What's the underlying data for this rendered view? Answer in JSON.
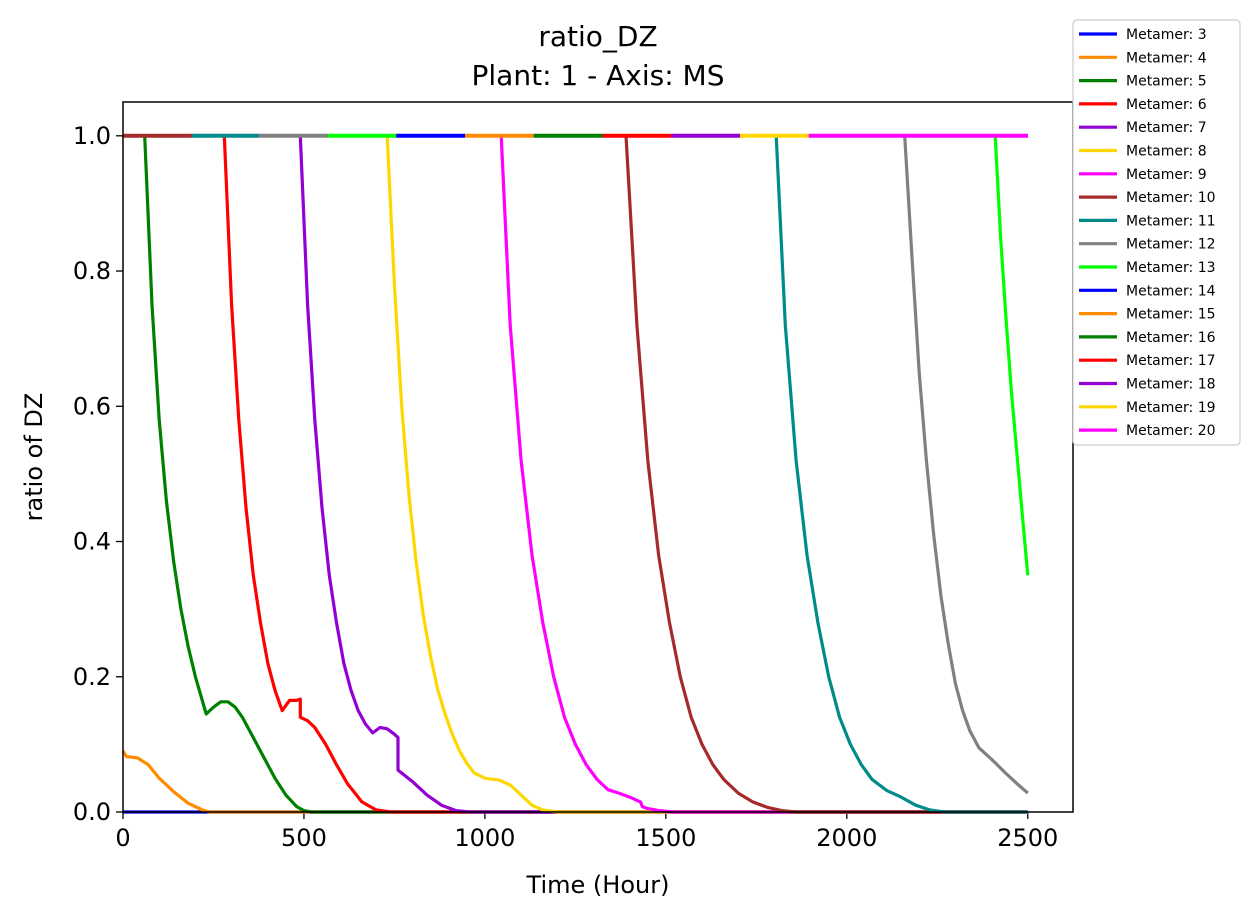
{
  "chart_data": {
    "type": "line",
    "title": "ratio_DZ",
    "subtitle": "Plant: 1 - Axis: MS",
    "xlabel": "Time (Hour)",
    "ylabel": "ratio of DZ",
    "xlim": [
      0,
      2625
    ],
    "ylim": [
      0,
      1.05
    ],
    "xticks": [
      "0",
      "500",
      "1000",
      "1500",
      "2000",
      "2500"
    ],
    "yticks": [
      "0.0",
      "0.2",
      "0.4",
      "0.6",
      "0.8",
      "1.0"
    ],
    "grid": false,
    "legend_position": "outside-top-right",
    "series": [
      {
        "name": "Metamer: 3",
        "color": "#0000ff",
        "x": [
          0,
          2500
        ],
        "y": [
          0.0,
          0.0
        ]
      },
      {
        "name": "Metamer: 4",
        "color": "#ff8c00",
        "x": [
          0,
          10,
          40,
          70,
          100,
          140,
          180,
          220,
          240,
          2500
        ],
        "y": [
          0.09,
          0.082,
          0.08,
          0.07,
          0.05,
          0.03,
          0.013,
          0.003,
          0.0,
          0.0
        ]
      },
      {
        "name": "Metamer: 5",
        "color": "#008000",
        "x": [
          0,
          60,
          80,
          100,
          120,
          140,
          160,
          180,
          200,
          230,
          250,
          270,
          290,
          310,
          330,
          360,
          390,
          420,
          450,
          480,
          500,
          520,
          2500
        ],
        "y": [
          1.0,
          1.0,
          0.75,
          0.58,
          0.46,
          0.37,
          0.3,
          0.245,
          0.2,
          0.145,
          0.155,
          0.163,
          0.163,
          0.155,
          0.14,
          0.11,
          0.08,
          0.05,
          0.025,
          0.008,
          0.002,
          0.0,
          0.0
        ]
      },
      {
        "name": "Metamer: 6",
        "color": "#ff0000",
        "x": [
          0,
          280,
          300,
          320,
          340,
          360,
          380,
          400,
          420,
          440,
          460,
          480,
          490,
          490,
          510,
          530,
          560,
          590,
          620,
          660,
          700,
          740,
          2500
        ],
        "y": [
          1.0,
          1.0,
          0.75,
          0.58,
          0.45,
          0.35,
          0.28,
          0.22,
          0.18,
          0.15,
          0.165,
          0.165,
          0.167,
          0.14,
          0.135,
          0.125,
          0.1,
          0.07,
          0.042,
          0.015,
          0.003,
          0.0,
          0.0
        ]
      },
      {
        "name": "Metamer: 7",
        "color": "#9400d3",
        "x": [
          0,
          490,
          510,
          530,
          550,
          570,
          590,
          610,
          630,
          650,
          670,
          690,
          710,
          730,
          750,
          760,
          760,
          800,
          840,
          880,
          920,
          960,
          2500
        ],
        "y": [
          1.0,
          1.0,
          0.75,
          0.58,
          0.45,
          0.35,
          0.28,
          0.22,
          0.18,
          0.15,
          0.13,
          0.117,
          0.125,
          0.123,
          0.115,
          0.11,
          0.062,
          0.045,
          0.025,
          0.01,
          0.002,
          0.0,
          0.0
        ]
      },
      {
        "name": "Metamer: 8",
        "color": "#ffd700",
        "x": [
          0,
          730,
          750,
          770,
          790,
          810,
          830,
          850,
          870,
          890,
          910,
          930,
          950,
          970,
          1000,
          1040,
          1070,
          1100,
          1130,
          1160,
          1200,
          2500
        ],
        "y": [
          1.0,
          1.0,
          0.78,
          0.6,
          0.47,
          0.37,
          0.29,
          0.23,
          0.18,
          0.145,
          0.115,
          0.09,
          0.072,
          0.058,
          0.05,
          0.047,
          0.04,
          0.025,
          0.01,
          0.003,
          0.0,
          0.0
        ]
      },
      {
        "name": "Metamer: 9",
        "color": "#ff00ff",
        "x": [
          0,
          1045,
          1070,
          1100,
          1130,
          1160,
          1190,
          1220,
          1250,
          1280,
          1310,
          1340,
          1370,
          1400,
          1430,
          1435,
          1450,
          1480,
          1520,
          2500
        ],
        "y": [
          1.0,
          1.0,
          0.72,
          0.52,
          0.38,
          0.28,
          0.2,
          0.14,
          0.1,
          0.07,
          0.048,
          0.033,
          0.028,
          0.022,
          0.015,
          0.008,
          0.005,
          0.002,
          0.0,
          0.0
        ]
      },
      {
        "name": "Metamer: 10",
        "color": "#a52a2a",
        "x": [
          0,
          1390,
          1420,
          1450,
          1480,
          1510,
          1540,
          1570,
          1600,
          1630,
          1660,
          1700,
          1740,
          1780,
          1820,
          1860,
          2500
        ],
        "y": [
          1.0,
          1.0,
          0.72,
          0.52,
          0.38,
          0.28,
          0.2,
          0.14,
          0.1,
          0.07,
          0.048,
          0.028,
          0.015,
          0.007,
          0.002,
          0.0,
          0.0
        ]
      },
      {
        "name": "Metamer: 11",
        "color": "#008b8b",
        "x": [
          0,
          1805,
          1830,
          1860,
          1890,
          1920,
          1950,
          1980,
          2010,
          2040,
          2070,
          2110,
          2150,
          2190,
          2230,
          2270,
          2500
        ],
        "y": [
          1.0,
          1.0,
          0.72,
          0.52,
          0.38,
          0.28,
          0.2,
          0.14,
          0.1,
          0.07,
          0.048,
          0.032,
          0.022,
          0.01,
          0.003,
          0.0,
          0.0
        ]
      },
      {
        "name": "Metamer: 12",
        "color": "#808080",
        "x": [
          0,
          2160,
          2180,
          2200,
          2220,
          2240,
          2260,
          2280,
          2300,
          2320,
          2340,
          2365,
          2400,
          2440,
          2470,
          2500
        ],
        "y": [
          1.0,
          1.0,
          0.82,
          0.65,
          0.52,
          0.41,
          0.32,
          0.25,
          0.19,
          0.15,
          0.12,
          0.095,
          0.078,
          0.057,
          0.042,
          0.028
        ]
      },
      {
        "name": "Metamer: 13",
        "color": "#00ff00",
        "x": [
          0,
          2410,
          2425,
          2440,
          2455,
          2470,
          2485,
          2500
        ],
        "y": [
          1.0,
          1.0,
          0.85,
          0.73,
          0.62,
          0.53,
          0.44,
          0.35
        ]
      },
      {
        "name": "Metamer: 14",
        "color": "#0000ff",
        "x": [
          0,
          2500
        ],
        "y": [
          1.0,
          1.0
        ]
      },
      {
        "name": "Metamer: 15",
        "color": "#ff8c00",
        "x": [
          0,
          2500
        ],
        "y": [
          1.0,
          1.0
        ]
      },
      {
        "name": "Metamer: 16",
        "color": "#008000",
        "x": [
          0,
          2500
        ],
        "y": [
          1.0,
          1.0
        ]
      },
      {
        "name": "Metamer: 17",
        "color": "#ff0000",
        "x": [
          0,
          2500
        ],
        "y": [
          1.0,
          1.0
        ]
      },
      {
        "name": "Metamer: 18",
        "color": "#9400d3",
        "x": [
          0,
          2500
        ],
        "y": [
          1.0,
          1.0
        ]
      },
      {
        "name": "Metamer: 19",
        "color": "#ffd700",
        "x": [
          0,
          2500
        ],
        "y": [
          1.0,
          1.0
        ]
      },
      {
        "name": "Metamer: 20",
        "color": "#ff00ff",
        "x": [
          0,
          2500
        ],
        "y": [
          1.0,
          1.0
        ]
      }
    ],
    "top_segments": [
      {
        "color": "#a52a2a",
        "x": [
          0,
          190
        ]
      },
      {
        "color": "#008b8b",
        "x": [
          190,
          375
        ]
      },
      {
        "color": "#808080",
        "x": [
          375,
          565
        ]
      },
      {
        "color": "#00ff00",
        "x": [
          565,
          755
        ]
      },
      {
        "color": "#0000ff",
        "x": [
          755,
          945
        ]
      },
      {
        "color": "#ff8c00",
        "x": [
          945,
          1135
        ]
      },
      {
        "color": "#008000",
        "x": [
          1135,
          1325
        ]
      },
      {
        "color": "#ff0000",
        "x": [
          1325,
          1515
        ]
      },
      {
        "color": "#9400d3",
        "x": [
          1515,
          1705
        ]
      },
      {
        "color": "#ffd700",
        "x": [
          1705,
          1895
        ]
      },
      {
        "color": "#ff00ff",
        "x": [
          1895,
          2500
        ]
      }
    ]
  }
}
